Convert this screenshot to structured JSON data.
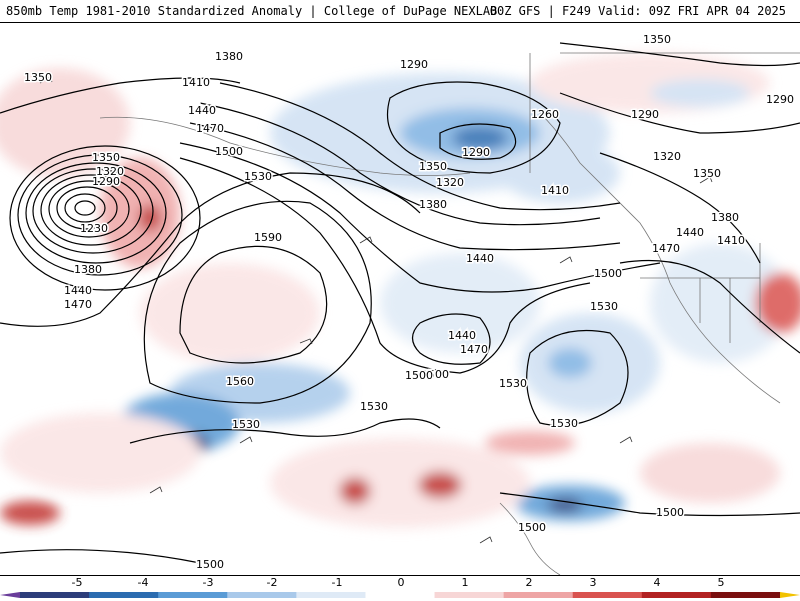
{
  "header": {
    "title_left": "850mb Temp 1981-2010 Standardized Anomaly | College of DuPage NEXLAB",
    "title_right": "00Z GFS | F249 Valid: 09Z FRI APR 04 2025"
  },
  "map": {
    "contour_labels": [
      {
        "id": "c1380a",
        "text": "1380"
      },
      {
        "id": "c1350a",
        "text": "1350"
      },
      {
        "id": "c1410a",
        "text": "1410"
      },
      {
        "id": "c1440a",
        "text": "1440"
      },
      {
        "id": "c1470a",
        "text": "1470"
      },
      {
        "id": "c1500a",
        "text": "1500"
      },
      {
        "id": "c1350b",
        "text": "1350"
      },
      {
        "id": "c1320a",
        "text": "1320"
      },
      {
        "id": "c1290a",
        "text": "1290"
      },
      {
        "id": "c1230a",
        "text": "1230"
      },
      {
        "id": "c1380b",
        "text": "1380"
      },
      {
        "id": "c1440b",
        "text": "1440"
      },
      {
        "id": "c1470b",
        "text": "1470"
      },
      {
        "id": "c1530a",
        "text": "1530"
      },
      {
        "id": "c1590a",
        "text": "1590"
      },
      {
        "id": "c1560a",
        "text": "1560"
      },
      {
        "id": "c1530b",
        "text": "1530"
      },
      {
        "id": "c1530c",
        "text": "1530"
      },
      {
        "id": "c1500b",
        "text": "1500"
      },
      {
        "id": "c1290b",
        "text": "1290"
      },
      {
        "id": "c1260a",
        "text": "1260"
      },
      {
        "id": "c1290c",
        "text": "1290"
      },
      {
        "id": "c1320b",
        "text": "1320"
      },
      {
        "id": "c1350c",
        "text": "1350"
      },
      {
        "id": "c1380c",
        "text": "1380"
      },
      {
        "id": "c1410b",
        "text": "1410"
      },
      {
        "id": "c1440c",
        "text": "1440"
      },
      {
        "id": "c1440d",
        "text": "1440"
      },
      {
        "id": "c1470c",
        "text": "1470"
      },
      {
        "id": "c1500c",
        "text": "1500"
      },
      {
        "id": "c1530d",
        "text": "1530"
      },
      {
        "id": "c1530e",
        "text": "1530"
      },
      {
        "id": "c1530f",
        "text": "1530"
      },
      {
        "id": "c1350d",
        "text": "1350"
      },
      {
        "id": "c1290d",
        "text": "1290"
      },
      {
        "id": "c1290e",
        "text": "1290"
      },
      {
        "id": "c1320c",
        "text": "1320"
      },
      {
        "id": "c1350e",
        "text": "1350"
      },
      {
        "id": "c1380d",
        "text": "1380"
      },
      {
        "id": "c1440e",
        "text": "1440"
      },
      {
        "id": "c1410c",
        "text": "1410"
      },
      {
        "id": "c1470d",
        "text": "1470"
      },
      {
        "id": "c1500d",
        "text": "1500"
      },
      {
        "id": "c1500e",
        "text": "1500"
      },
      {
        "id": "c1500f",
        "text": "1500"
      },
      {
        "id": "c1500g",
        "text": "1500"
      }
    ]
  },
  "colorbar": {
    "labels": [
      "-5",
      "-4",
      "-3",
      "-2",
      "-1",
      "0",
      "1",
      "2",
      "3",
      "4",
      "5"
    ],
    "colors": [
      "#6a3d9a",
      "#2c3d7a",
      "#2b6cb0",
      "#5a9bd5",
      "#a9c9ea",
      "#dfeaf6",
      "#ffffff",
      "#f7d6d6",
      "#eea5a5",
      "#d9534f",
      "#b22222",
      "#7a0f0f",
      "#f2c200"
    ]
  }
}
